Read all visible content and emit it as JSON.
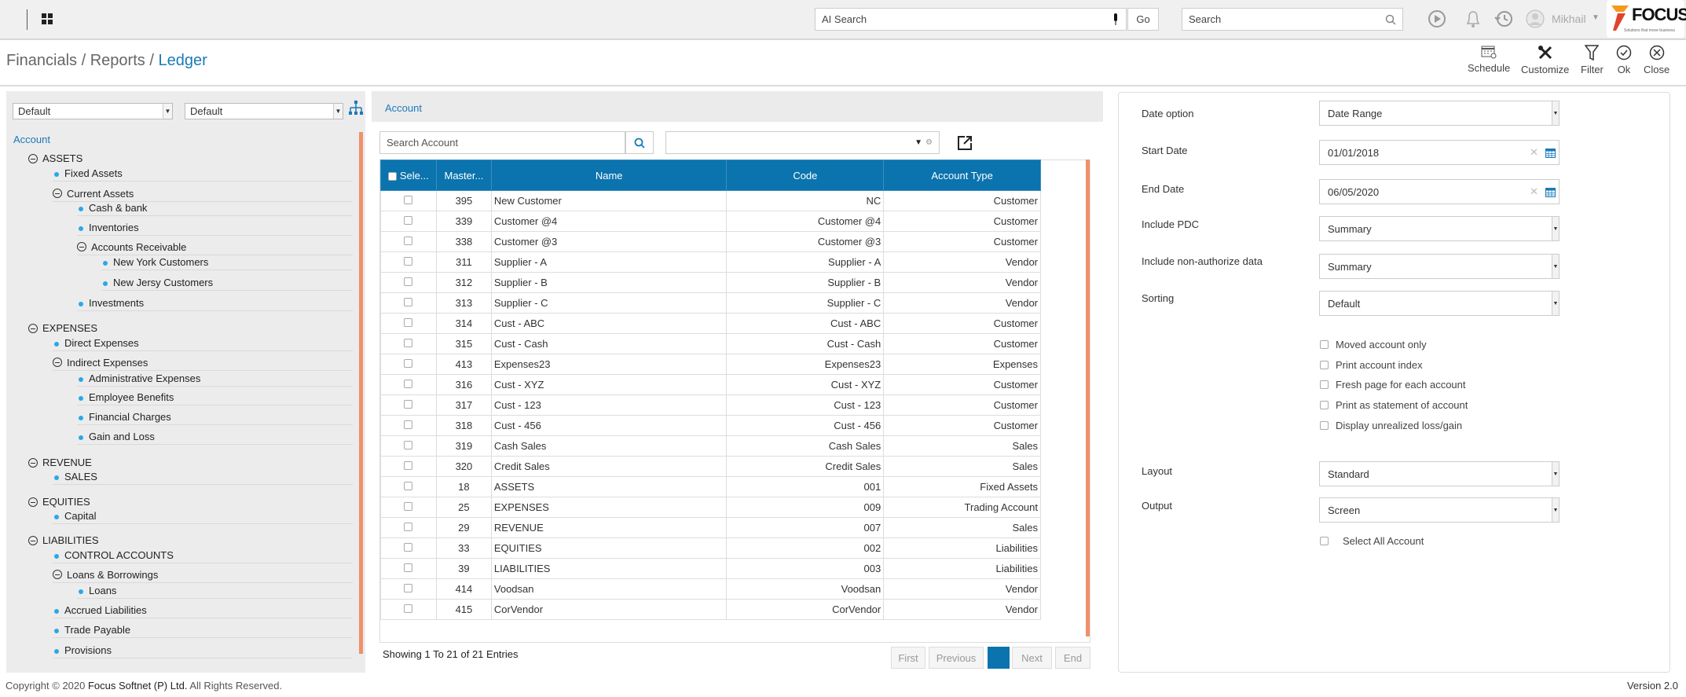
{
  "topbar": {
    "ai_search_placeholder": "AI Search",
    "go_label": "Go",
    "search_placeholder": "Search",
    "user_name": "Mikhail",
    "logo_text": "FOCUS",
    "logo_tagline": "Solutions that move business"
  },
  "breadcrumb": {
    "items": [
      "Financials",
      "Reports"
    ],
    "current": "Ledger",
    "separator": "/"
  },
  "toolbar": {
    "schedule": "Schedule",
    "customize": "Customize",
    "filter": "Filter",
    "ok": "Ok",
    "close": "Close"
  },
  "left_panel": {
    "dropdown1": "Default",
    "dropdown2": "Default",
    "root": "Account",
    "tree": [
      {
        "label": "ASSETS",
        "level": 0,
        "group": true
      },
      {
        "label": "Fixed Assets",
        "level": 1,
        "group": false
      },
      {
        "label": "Current Assets",
        "level": 1,
        "group": true
      },
      {
        "label": "Cash & bank",
        "level": 2,
        "group": false
      },
      {
        "label": "Inventories",
        "level": 2,
        "group": false
      },
      {
        "label": "Accounts Receivable",
        "level": 2,
        "group": true
      },
      {
        "label": "New York Customers",
        "level": 3,
        "group": false
      },
      {
        "label": "New Jersy Customers",
        "level": 3,
        "group": false
      },
      {
        "label": "Investments",
        "level": 2,
        "group": false
      },
      {
        "label": "EXPENSES",
        "level": 0,
        "group": true
      },
      {
        "label": "Direct Expenses",
        "level": 1,
        "group": false
      },
      {
        "label": "Indirect Expenses",
        "level": 1,
        "group": true
      },
      {
        "label": "Administrative Expenses",
        "level": 2,
        "group": false
      },
      {
        "label": "Employee Benefits",
        "level": 2,
        "group": false
      },
      {
        "label": "Financial Charges",
        "level": 2,
        "group": false
      },
      {
        "label": "Gain and Loss",
        "level": 2,
        "group": false
      },
      {
        "label": "REVENUE",
        "level": 0,
        "group": true
      },
      {
        "label": "SALES",
        "level": 1,
        "group": false
      },
      {
        "label": "EQUITIES",
        "level": 0,
        "group": true
      },
      {
        "label": "Capital",
        "level": 1,
        "group": false
      },
      {
        "label": "LIABILITIES",
        "level": 0,
        "group": true
      },
      {
        "label": "CONTROL ACCOUNTS",
        "level": 1,
        "group": false
      },
      {
        "label": "Loans & Borrowings",
        "level": 1,
        "group": true
      },
      {
        "label": "Loans",
        "level": 2,
        "group": false
      },
      {
        "label": "Accrued Liabilities",
        "level": 1,
        "group": false
      },
      {
        "label": "Trade Payable",
        "level": 1,
        "group": false
      },
      {
        "label": "Provisions",
        "level": 1,
        "group": false
      }
    ]
  },
  "account_panel": {
    "title": "Account",
    "search_placeholder": "Search Account",
    "columns": [
      "Sele...",
      "Master...",
      "Name",
      "Code",
      "Account Type"
    ],
    "rows": [
      [
        "395",
        "New Customer",
        "NC",
        "Customer"
      ],
      [
        "339",
        "Customer @4",
        "Customer @4",
        "Customer"
      ],
      [
        "338",
        "Customer @3",
        "Customer @3",
        "Customer"
      ],
      [
        "311",
        "Supplier - A",
        "Supplier - A",
        "Vendor"
      ],
      [
        "312",
        "Supplier - B",
        "Supplier - B",
        "Vendor"
      ],
      [
        "313",
        "Supplier - C",
        "Supplier - C",
        "Vendor"
      ],
      [
        "314",
        "Cust - ABC",
        "Cust - ABC",
        "Customer"
      ],
      [
        "315",
        "Cust - Cash",
        "Cust - Cash",
        "Customer"
      ],
      [
        "413",
        "Expenses23",
        "Expenses23",
        "Expenses"
      ],
      [
        "316",
        "Cust - XYZ",
        "Cust - XYZ",
        "Customer"
      ],
      [
        "317",
        "Cust - 123",
        "Cust - 123",
        "Customer"
      ],
      [
        "318",
        "Cust - 456",
        "Cust - 456",
        "Customer"
      ],
      [
        "319",
        "Cash Sales",
        "Cash Sales",
        "Sales"
      ],
      [
        "320",
        "Credit Sales",
        "Credit Sales",
        "Sales"
      ],
      [
        "18",
        "ASSETS",
        "001",
        "Fixed Assets"
      ],
      [
        "25",
        "EXPENSES",
        "009",
        "Trading Account"
      ],
      [
        "29",
        "REVENUE",
        "007",
        "Sales"
      ],
      [
        "33",
        "EQUITIES",
        "002",
        "Liabilities"
      ],
      [
        "39",
        "LIABILITIES",
        "003",
        "Liabilities"
      ],
      [
        "414",
        "Voodsan",
        "Voodsan",
        "Vendor"
      ],
      [
        "415",
        "CorVendor",
        "CorVendor",
        "Vendor"
      ]
    ],
    "showing": "Showing 1 To 21 of 21 Entries",
    "pagination": {
      "first": "First",
      "previous": "Previous",
      "current": "1",
      "next": "Next",
      "end": "End"
    }
  },
  "filters": {
    "date_option": {
      "label": "Date option",
      "value": "Date Range"
    },
    "start_date": {
      "label": "Start Date",
      "value": "01/01/2018"
    },
    "end_date": {
      "label": "End Date",
      "value": "06/05/2020"
    },
    "include_pdc": {
      "label": "Include PDC",
      "value": "Summary"
    },
    "include_non_auth": {
      "label": "Include non-authorize data",
      "value": "Summary"
    },
    "sorting": {
      "label": "Sorting",
      "value": "Default"
    },
    "checkboxes": [
      "Moved account only",
      "Print account index",
      "Fresh page for each account",
      "Print as statement of account",
      "Display unrealized loss/gain"
    ],
    "layout": {
      "label": "Layout",
      "value": "Standard"
    },
    "output": {
      "label": "Output",
      "value": "Screen"
    },
    "select_all": "Select All Account"
  },
  "footer": {
    "prefix": "Copyright © 2020 ",
    "company": "Focus Softnet (P) Ltd.",
    "suffix": " All Rights Reserved.",
    "version": "Version 2.0"
  },
  "colors": {
    "accent": "#0b73ad",
    "scrollbar": "#f0906a",
    "bullet": "#29a8e8"
  }
}
